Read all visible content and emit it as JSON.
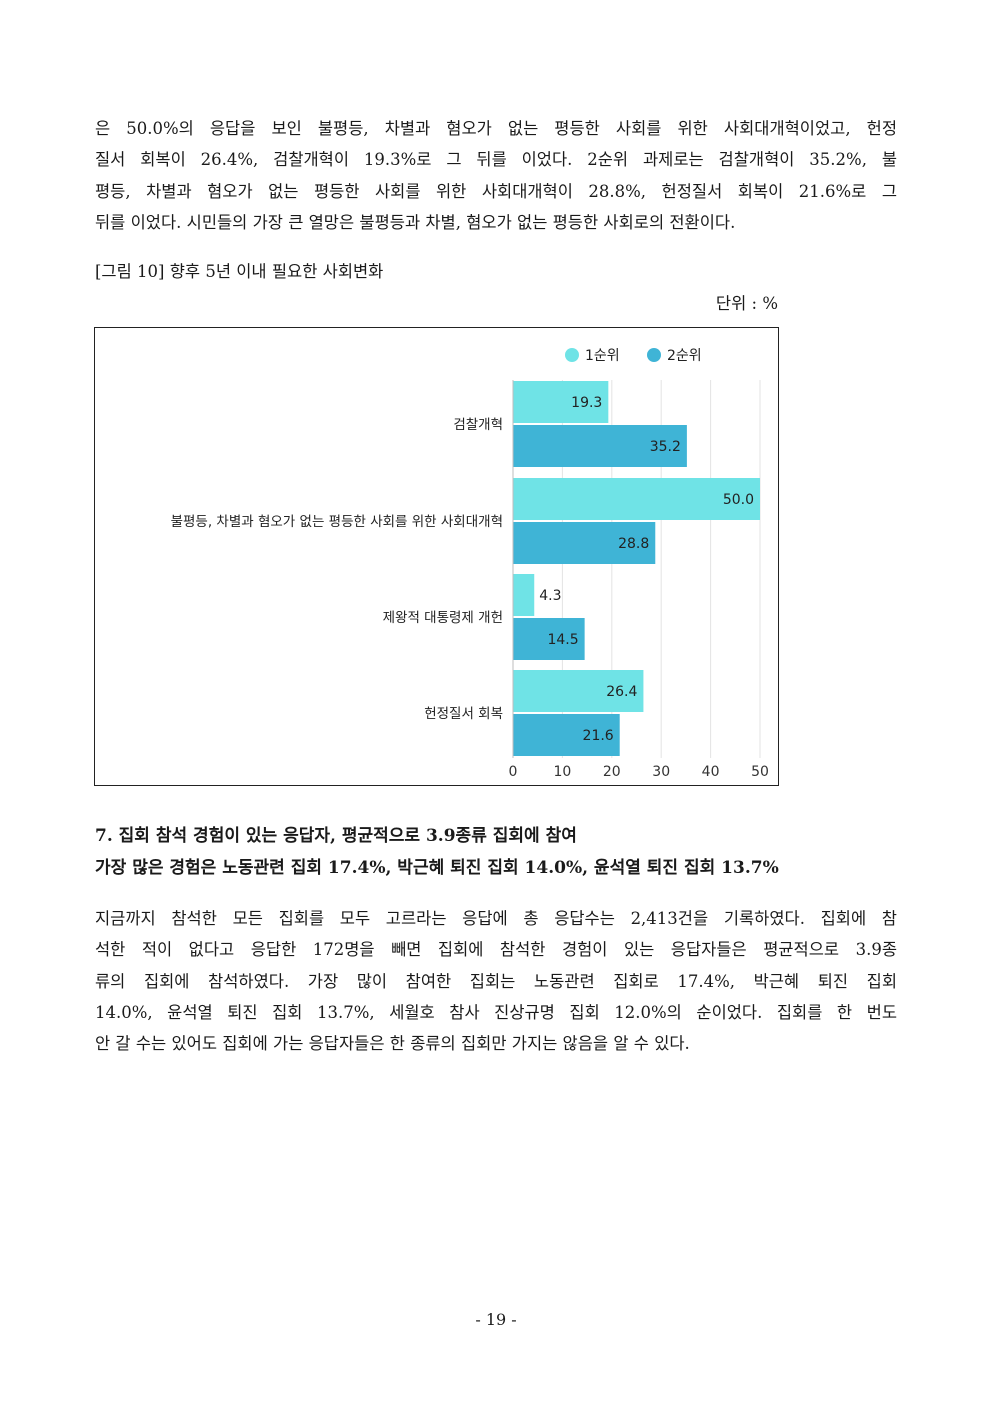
{
  "paragraph1": {
    "lines": [
      "은 50.0%의 응답을 보인 불평등, 차별과 혐오가 없는 평등한 사회를 위한 사회대개혁이었고, 헌정",
      "질서 회복이 26.4%, 검찰개혁이 19.3%로 그 뒤를 이었다. 2순위 과제로는 검찰개혁이 35.2%, 불",
      "평등, 차별과 혐오가 없는 평등한 사회를 위한 사회대개혁이 28.8%, 헌정질서 회복이 21.6%로 그",
      "뒤를 이었다. 시민들의 가장 큰 열망은 불평등과 차별, 혐오가 없는 평등한 사회로의 전환이다."
    ]
  },
  "figure": {
    "caption": "[그림 10] 향후 5년 이내 필요한 사회변화",
    "unit": "단위 : %"
  },
  "chart_data": {
    "type": "bar",
    "orientation": "horizontal",
    "categories": [
      "검찰개혁",
      "불평등, 차별과 혐오가 없는 평등한 사회를 위한 사회대개혁",
      "제왕적 대통령제 개헌",
      "헌정질서 회복"
    ],
    "series": [
      {
        "name": "1순위",
        "values": [
          19.3,
          50.0,
          4.3,
          26.4
        ],
        "color": "#6fe3e6"
      },
      {
        "name": "2순위",
        "values": [
          35.2,
          28.8,
          14.5,
          21.6
        ],
        "color": "#3fb4d6"
      }
    ],
    "value_labels": [
      [
        "19.3",
        "50.0",
        "4.3",
        "26.4"
      ],
      [
        "35.2",
        "28.8",
        "14.5",
        "21.6"
      ]
    ],
    "xlim": [
      0,
      50
    ],
    "xticks": [
      "0",
      "10",
      "20",
      "30",
      "40",
      "50"
    ],
    "grid": true,
    "legend_position": "top-right"
  },
  "section": {
    "line1": "7. 집회 참석 경험이 있는 응답자, 평균적으로 3.9종류 집회에 참여",
    "line2": "가장 많은 경험은 노동관련 집회 17.4%, 박근혜 퇴진 집회 14.0%, 윤석열 퇴진 집회 13.7%"
  },
  "paragraph2": {
    "lines": [
      "지금까지 참석한 모든 집회를 모두 고르라는 응답에 총 응답수는 2,413건을 기록하였다. 집회에 참",
      "석한 적이 없다고 응답한 172명을 빼면 집회에 참석한 경험이 있는 응답자들은 평균적으로 3.9종",
      "류의 집회에 참석하였다. 가장 많이 참여한 집회는 노동관련 집회로 17.4%, 박근혜 퇴진 집회",
      "14.0%, 윤석열 퇴진 집회 13.7%, 세월호 참사 진상규명 집회 12.0%의 순이었다. 집회를 한 번도",
      "안 갈 수는 있어도 집회에 가는 응답자들은 한 종류의 집회만 가지는 않음을 알 수 있다."
    ]
  },
  "page_number": "- 19 -"
}
